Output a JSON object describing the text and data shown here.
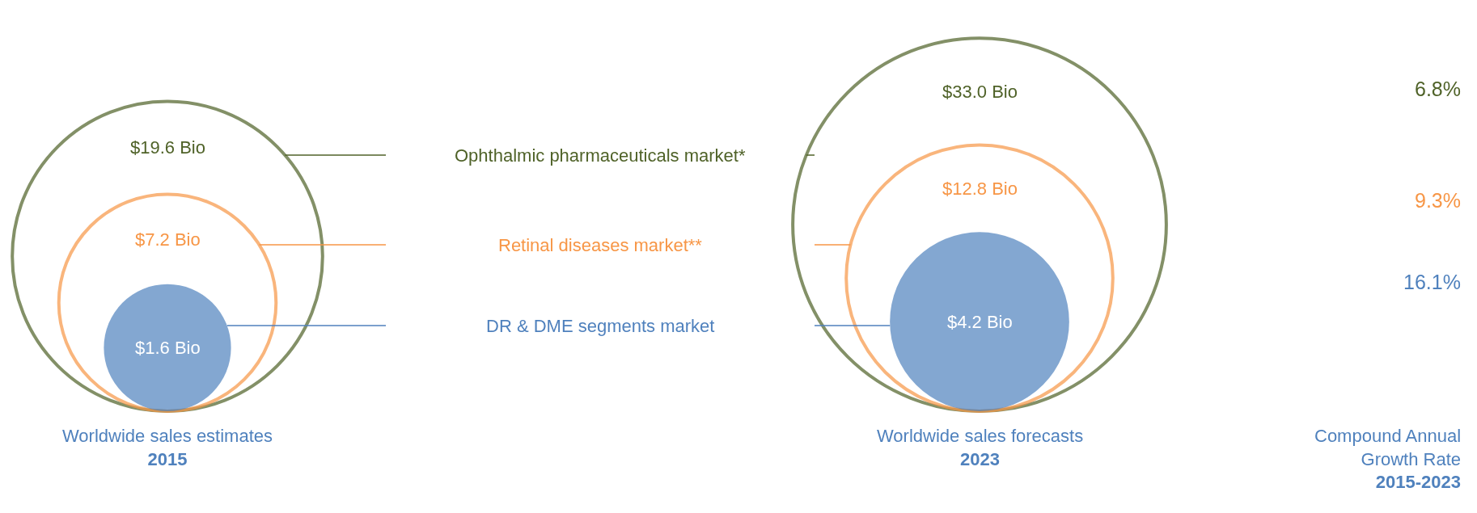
{
  "chart_data": {
    "type": "other",
    "categories": [
      "Worldwide sales estimates\n2015",
      "Worldwide sales forecasts\n2023"
    ],
    "series": [
      {
        "name": "Ophthalmic pharmaceuticals market*",
        "color": "#4f6228",
        "values": [
          19.6,
          33.0
        ],
        "value_labels": [
          "$19.6 Bio",
          "$33.0 Bio"
        ]
      },
      {
        "name": "Retinal diseases market**",
        "color": "#f79646",
        "values": [
          7.2,
          12.8
        ],
        "value_labels": [
          "$7.2 Bio",
          "$12.8 Bio"
        ]
      },
      {
        "name": "DR & DME segments market",
        "color": "#4f81bd",
        "values": [
          1.6,
          4.2
        ],
        "value_labels": [
          "$1.6 Bio",
          "$4.2 Bio"
        ]
      }
    ],
    "annotations": [
      "6.8%",
      "9.3%",
      "16.1%",
      "Compound Annual\nGrowth Rate\n2015-2023"
    ]
  }
}
